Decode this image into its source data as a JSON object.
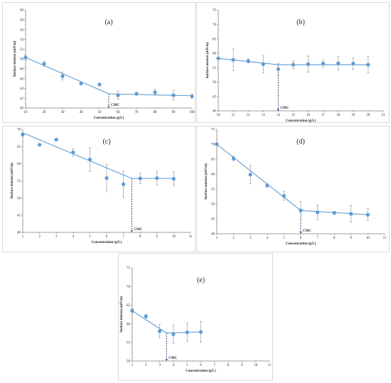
{
  "accent": "#5b9bd5",
  "axis_color": "#7f7f7f",
  "chart_data": [
    {
      "id": "a",
      "type": "scatter",
      "panel_label": "(a)",
      "xlabel": "Concentration (g/L)",
      "ylabel": "Surface tension (mN/m)",
      "xlim": [
        10,
        100
      ],
      "ylim": [
        40,
        60
      ],
      "xticks": [
        10,
        20,
        30,
        40,
        50,
        60,
        70,
        80,
        90,
        100
      ],
      "yticks": [
        40,
        42,
        44,
        46,
        48,
        50,
        52,
        54,
        56,
        58,
        60
      ],
      "x": [
        10,
        20,
        30,
        40,
        50,
        60,
        70,
        80,
        90,
        100
      ],
      "y": [
        50.3,
        49.0,
        46.5,
        45.0,
        44.8,
        42.6,
        42.9,
        43.2,
        42.6,
        42.4
      ],
      "err": [
        0.5,
        0.5,
        0.8,
        0.3,
        0.3,
        0.8,
        0.3,
        0.6,
        1.0,
        0.4
      ],
      "fit": [
        [
          10,
          50.3
        ],
        [
          55,
          42.9
        ],
        [
          100,
          42.5
        ]
      ],
      "cmc_x": 55,
      "cmc_label": "CMC"
    },
    {
      "id": "b",
      "type": "scatter",
      "panel_label": "(b)",
      "xlabel": "Concentration (g/L)",
      "ylabel": "Surface tension (mN/m)",
      "xlim": [
        10,
        21
      ],
      "ylim": [
        40,
        75
      ],
      "xticks": [
        10,
        11,
        12,
        13,
        14,
        15,
        16,
        17,
        18,
        19,
        20,
        21
      ],
      "yticks": [
        40,
        45,
        50,
        55,
        60,
        65,
        70,
        75
      ],
      "x": [
        10,
        11,
        12,
        13,
        14,
        15,
        16,
        17,
        18,
        19,
        20
      ],
      "y": [
        58.2,
        57.7,
        57.3,
        56.2,
        54.5,
        56.0,
        56.2,
        56.4,
        56.5,
        56.4,
        56.0
      ],
      "err": [
        0.4,
        3.8,
        0.7,
        3.0,
        2.0,
        1.4,
        2.8,
        1.2,
        2.3,
        2.0,
        2.8
      ],
      "fit": [
        [
          10,
          58.2
        ],
        [
          14,
          56.0
        ],
        [
          20,
          56.0
        ]
      ],
      "cmc_x": 14,
      "cmc_label": "CMC"
    },
    {
      "id": "c",
      "type": "scatter",
      "panel_label": "(c)",
      "xlabel": "Concentration (g/L)",
      "ylabel": "Surface tension (mN/m)",
      "xlim": [
        1,
        11
      ],
      "ylim": [
        40,
        70
      ],
      "xticks": [
        1,
        2,
        3,
        4,
        5,
        6,
        7,
        8,
        9,
        10,
        11
      ],
      "yticks": [
        40,
        45,
        50,
        55,
        60,
        65,
        70
      ],
      "x": [
        1,
        2,
        3,
        4,
        5,
        6,
        7,
        8,
        9,
        10
      ],
      "y": [
        68.5,
        65.5,
        67.0,
        63.3,
        61.2,
        55.8,
        54.0,
        55.7,
        55.8,
        55.6
      ],
      "err": [
        0.5,
        0.4,
        0.4,
        1.0,
        3.5,
        4.0,
        3.8,
        1.5,
        2.0,
        2.0
      ],
      "fit": [
        [
          1,
          69.0
        ],
        [
          7.5,
          55.7
        ],
        [
          10,
          55.7
        ]
      ],
      "cmc_x": 7.5,
      "cmc_label": "CMC"
    },
    {
      "id": "d",
      "type": "scatter",
      "panel_label": "(d)",
      "xlabel": "Concentration (g/L)",
      "ylabel": "Surface tension (mN/m)",
      "xlim": [
        1,
        11
      ],
      "ylim": [
        40,
        75
      ],
      "xticks": [
        1,
        2,
        3,
        4,
        5,
        6,
        7,
        8,
        9,
        10,
        11
      ],
      "yticks": [
        40,
        45,
        50,
        55,
        60,
        65,
        70,
        75
      ],
      "x": [
        1,
        2,
        3,
        4,
        5,
        6,
        7,
        8,
        9,
        10
      ],
      "y": [
        70.0,
        65.2,
        59.8,
        56.2,
        52.7,
        47.8,
        47.2,
        47.0,
        46.7,
        46.4
      ],
      "err": [
        0.5,
        0.8,
        3.0,
        0.6,
        1.5,
        3.0,
        2.5,
        0.5,
        2.8,
        2.0
      ],
      "fit": [
        [
          1,
          70.0
        ],
        [
          6,
          47.8
        ],
        [
          10,
          46.4
        ]
      ],
      "cmc_x": 6,
      "cmc_label": "CMC"
    },
    {
      "id": "e",
      "type": "scatter",
      "panel_label": "(e)",
      "xlabel": "Concentration (g/L)",
      "ylabel": "Surface tension (mN/m)",
      "xlim": [
        1,
        11
      ],
      "ylim": [
        50,
        75
      ],
      "xticks": [
        1,
        2,
        3,
        4,
        5,
        6,
        7,
        8,
        9,
        10,
        11
      ],
      "yticks": [
        50,
        55,
        60,
        65,
        70,
        75
      ],
      "x": [
        1,
        2,
        3,
        4,
        5,
        6
      ],
      "y": [
        63.5,
        62.0,
        58.0,
        57.2,
        57.7,
        57.8
      ],
      "err": [
        0.5,
        0.5,
        1.8,
        2.5,
        2.5,
        2.8
      ],
      "fit": [
        [
          1,
          63.5
        ],
        [
          3.5,
          57.5
        ],
        [
          6,
          57.8
        ]
      ],
      "cmc_x": 3.5,
      "cmc_label": "CMC"
    }
  ]
}
